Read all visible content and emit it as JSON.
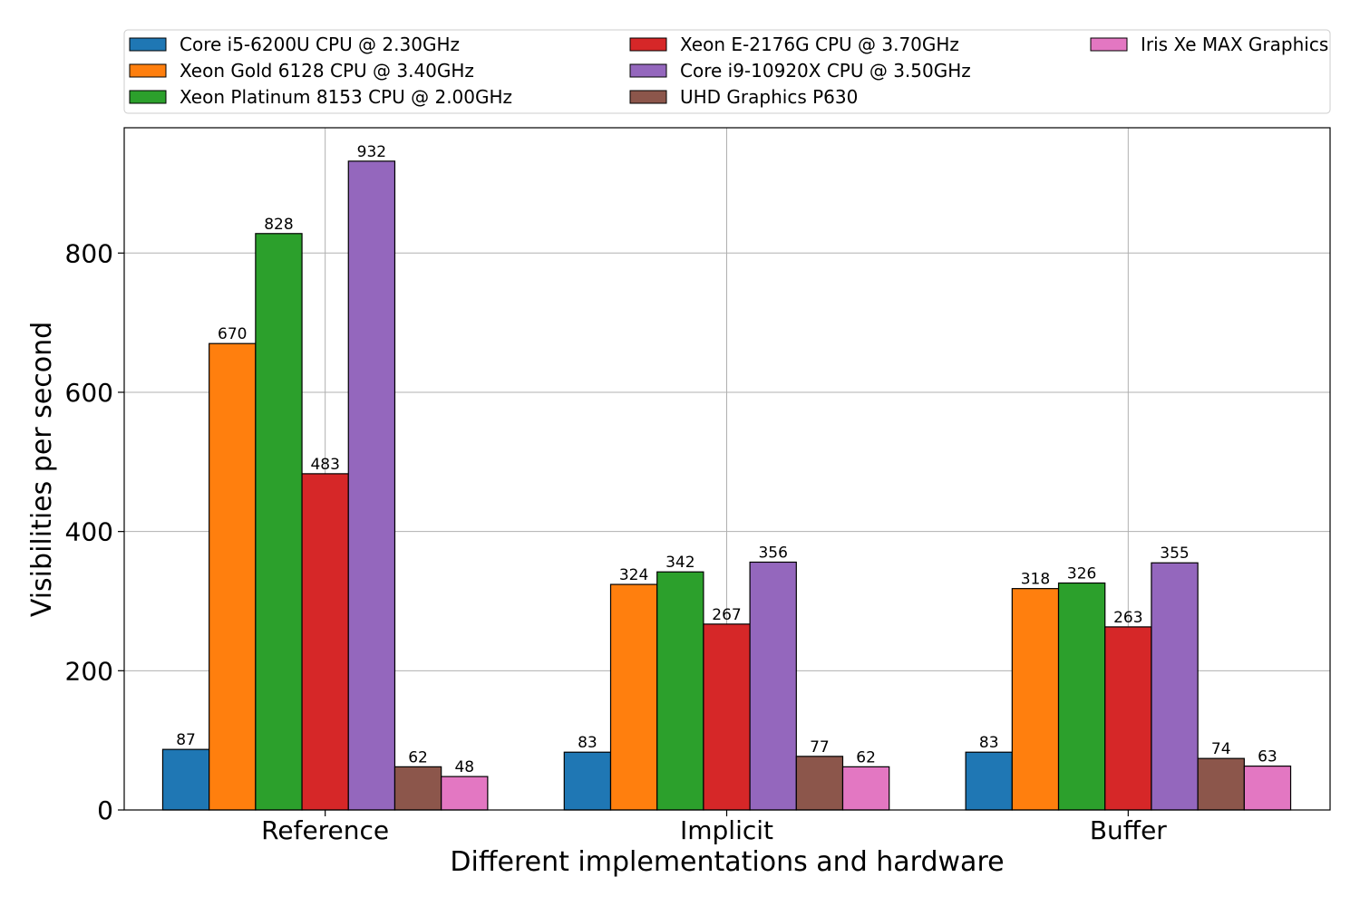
{
  "chart_data": {
    "type": "bar",
    "title": "",
    "xlabel": "Different implementations and hardware",
    "ylabel": "Visibilities per second",
    "categories": [
      "Reference",
      "Implicit",
      "Buffer"
    ],
    "ylim": [
      0,
      980
    ],
    "yticks": [
      0,
      200,
      400,
      600,
      800
    ],
    "grid": true,
    "legend_position": "top",
    "series": [
      {
        "name": "Core i5-6200U CPU @ 2.30GHz",
        "color": "#1f77b4",
        "values": [
          87,
          83,
          83
        ]
      },
      {
        "name": "Xeon Gold 6128 CPU @ 3.40GHz",
        "color": "#ff7f0e",
        "values": [
          670,
          324,
          318
        ]
      },
      {
        "name": "Xeon Platinum 8153 CPU @ 2.00GHz",
        "color": "#2ca02c",
        "values": [
          828,
          342,
          326
        ]
      },
      {
        "name": "Xeon E-2176G CPU @ 3.70GHz",
        "color": "#d62728",
        "values": [
          483,
          267,
          263
        ]
      },
      {
        "name": "Core i9-10920X CPU @ 3.50GHz",
        "color": "#9467bd",
        "values": [
          932,
          356,
          355
        ]
      },
      {
        "name": "UHD Graphics P630",
        "color": "#8c564b",
        "values": [
          62,
          77,
          74
        ]
      },
      {
        "name": "Iris Xe MAX Graphics",
        "color": "#e377c2",
        "values": [
          48,
          62,
          63
        ]
      }
    ]
  }
}
